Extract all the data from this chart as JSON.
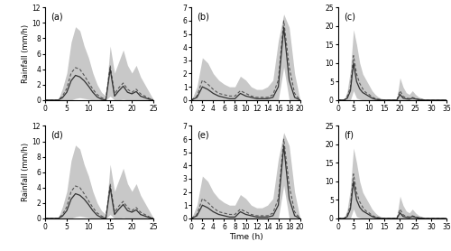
{
  "panels": [
    {
      "label": "(a)",
      "xlim": [
        0,
        25
      ],
      "xticks": [
        0,
        5,
        10,
        15,
        20,
        25
      ],
      "ylim": [
        0,
        12
      ],
      "yticks": [
        0,
        2,
        4,
        6,
        8,
        10,
        12
      ],
      "time": [
        0,
        1,
        2,
        3,
        4,
        5,
        6,
        7,
        8,
        9,
        10,
        11,
        12,
        13,
        14,
        15,
        16,
        17,
        18,
        19,
        20,
        21,
        22,
        23,
        24,
        25
      ],
      "obs": [
        0,
        0,
        0,
        0,
        0.3,
        1.0,
        2.5,
        3.2,
        3.0,
        2.5,
        1.8,
        1.0,
        0.4,
        0.1,
        0,
        4.0,
        0.5,
        1.2,
        1.8,
        1.0,
        0.8,
        1.1,
        0.5,
        0.3,
        0.1,
        0
      ],
      "med": [
        0,
        0,
        0,
        0,
        0.5,
        1.5,
        3.5,
        4.2,
        4.0,
        3.2,
        2.3,
        1.4,
        0.7,
        0.3,
        0.1,
        4.5,
        0.8,
        1.6,
        2.2,
        1.4,
        1.0,
        1.4,
        0.8,
        0.5,
        0.2,
        0
      ],
      "upper": [
        0,
        0,
        0,
        0,
        1.5,
        3.5,
        7.5,
        9.5,
        9.0,
        7.0,
        5.5,
        3.5,
        2.0,
        1.0,
        0.5,
        7.0,
        3.5,
        5.0,
        6.5,
        4.5,
        3.5,
        4.5,
        3.0,
        2.0,
        1.0,
        0
      ],
      "lower": [
        0,
        0,
        0,
        0,
        0,
        0,
        0,
        0.2,
        0.3,
        0.2,
        0.1,
        0,
        0,
        0,
        0,
        0.5,
        0,
        0,
        0.1,
        0,
        0,
        0,
        0,
        0,
        0,
        0
      ]
    },
    {
      "label": "(b)",
      "xlim": [
        0,
        20
      ],
      "xticks": [
        0,
        2,
        4,
        6,
        8,
        10,
        12,
        14,
        16,
        18,
        20
      ],
      "ylim": [
        0,
        7
      ],
      "yticks": [
        0,
        1,
        2,
        3,
        4,
        5,
        6,
        7
      ],
      "time": [
        0,
        1,
        2,
        3,
        4,
        5,
        6,
        7,
        8,
        9,
        10,
        11,
        12,
        13,
        14,
        15,
        16,
        17,
        18,
        19,
        20
      ],
      "obs": [
        0,
        0.2,
        1.0,
        0.8,
        0.5,
        0.3,
        0.2,
        0.1,
        0.1,
        0.5,
        0.3,
        0.2,
        0.1,
        0.1,
        0.1,
        0.2,
        1.0,
        5.5,
        1.5,
        0.2,
        0
      ],
      "med": [
        0,
        0.3,
        1.5,
        1.2,
        0.8,
        0.5,
        0.4,
        0.3,
        0.3,
        0.7,
        0.5,
        0.3,
        0.2,
        0.2,
        0.2,
        0.4,
        1.5,
        6.0,
        2.5,
        0.5,
        0
      ],
      "upper": [
        0,
        1.0,
        3.2,
        2.8,
        2.0,
        1.5,
        1.2,
        1.0,
        1.0,
        1.8,
        1.5,
        1.0,
        0.8,
        0.8,
        1.0,
        1.5,
        4.5,
        6.5,
        5.5,
        2.0,
        0
      ],
      "lower": [
        0,
        0,
        0,
        0,
        0,
        0,
        0,
        0,
        0,
        0,
        0,
        0,
        0,
        0,
        0,
        0,
        0,
        2.5,
        0,
        0,
        0
      ]
    },
    {
      "label": "(c)",
      "xlim": [
        0,
        35
      ],
      "xticks": [
        0,
        5,
        10,
        15,
        20,
        25,
        30,
        35
      ],
      "ylim": [
        0,
        25
      ],
      "yticks": [
        0,
        5,
        10,
        15,
        20,
        25
      ],
      "time": [
        0,
        1,
        2,
        3,
        4,
        5,
        6,
        7,
        8,
        9,
        10,
        11,
        12,
        13,
        14,
        15,
        16,
        17,
        18,
        19,
        20,
        21,
        22,
        23,
        24,
        25,
        26,
        27,
        28,
        29,
        30,
        31,
        32,
        33,
        34,
        35
      ],
      "obs": [
        0,
        0,
        0,
        0.5,
        2.5,
        10.0,
        5.0,
        3.0,
        2.0,
        1.5,
        1.0,
        0.5,
        0.2,
        0.1,
        0,
        0,
        0,
        0,
        0,
        0,
        1.5,
        0.5,
        0.3,
        0.2,
        0.5,
        0.3,
        0.1,
        0.1,
        0,
        0,
        0,
        0,
        0,
        0,
        0,
        0
      ],
      "med": [
        0,
        0,
        0,
        1.0,
        3.5,
        12.0,
        7.0,
        4.5,
        3.0,
        2.0,
        1.5,
        0.8,
        0.4,
        0.2,
        0.1,
        0,
        0,
        0,
        0,
        0,
        2.5,
        1.0,
        0.5,
        0.4,
        0.7,
        0.4,
        0.2,
        0.1,
        0,
        0,
        0,
        0,
        0,
        0,
        0,
        0
      ],
      "upper": [
        0,
        0,
        0,
        2.5,
        8.0,
        19.0,
        15.0,
        10.0,
        7.0,
        5.5,
        4.0,
        2.5,
        1.5,
        0.8,
        0.4,
        0.2,
        0.1,
        0,
        0,
        0.5,
        6.0,
        3.5,
        2.0,
        1.5,
        2.5,
        1.5,
        0.8,
        0.5,
        0.2,
        0.1,
        0,
        0,
        0,
        0,
        0,
        0
      ],
      "lower": [
        0,
        0,
        0,
        0,
        0,
        2.5,
        0.5,
        0.2,
        0,
        0,
        0,
        0,
        0,
        0,
        0,
        0,
        0,
        0,
        0,
        0,
        0,
        0,
        0,
        0,
        0,
        0,
        0,
        0,
        0,
        0,
        0,
        0,
        0,
        0,
        0,
        0
      ]
    },
    {
      "label": "(d)",
      "xlim": [
        0,
        25
      ],
      "xticks": [
        0,
        5,
        10,
        15,
        20,
        25
      ],
      "ylim": [
        0,
        12
      ],
      "yticks": [
        0,
        2,
        4,
        6,
        8,
        10,
        12
      ],
      "time": [
        0,
        1,
        2,
        3,
        4,
        5,
        6,
        7,
        8,
        9,
        10,
        11,
        12,
        13,
        14,
        15,
        16,
        17,
        18,
        19,
        20,
        21,
        22,
        23,
        24,
        25
      ],
      "obs": [
        0,
        0,
        0,
        0,
        0.3,
        1.0,
        2.5,
        3.2,
        3.0,
        2.5,
        1.8,
        1.0,
        0.4,
        0.1,
        0,
        4.0,
        0.5,
        1.2,
        1.8,
        1.0,
        0.8,
        1.1,
        0.5,
        0.3,
        0.1,
        0
      ],
      "med": [
        0,
        0,
        0,
        0,
        0.5,
        1.5,
        3.5,
        4.2,
        4.0,
        3.2,
        2.3,
        1.4,
        0.7,
        0.3,
        0.1,
        4.5,
        0.8,
        1.6,
        2.2,
        1.4,
        1.0,
        1.4,
        0.8,
        0.5,
        0.2,
        0
      ],
      "upper": [
        0,
        0,
        0,
        0,
        1.5,
        3.5,
        7.5,
        9.5,
        9.0,
        7.0,
        5.5,
        3.5,
        2.0,
        1.0,
        0.5,
        7.0,
        3.5,
        5.0,
        6.5,
        4.5,
        3.5,
        4.5,
        3.0,
        2.0,
        1.0,
        0
      ],
      "lower": [
        0,
        0,
        0,
        0,
        0,
        0,
        0,
        0.2,
        0.3,
        0.2,
        0.1,
        0,
        0,
        0,
        0,
        0.5,
        0,
        0,
        0.1,
        0,
        0,
        0,
        0,
        0,
        0,
        0
      ]
    },
    {
      "label": "(e)",
      "xlim": [
        0,
        20
      ],
      "xticks": [
        0,
        2,
        4,
        6,
        8,
        10,
        12,
        14,
        16,
        18,
        20
      ],
      "ylim": [
        0,
        7
      ],
      "yticks": [
        0,
        1,
        2,
        3,
        4,
        5,
        6,
        7
      ],
      "time": [
        0,
        1,
        2,
        3,
        4,
        5,
        6,
        7,
        8,
        9,
        10,
        11,
        12,
        13,
        14,
        15,
        16,
        17,
        18,
        19,
        20
      ],
      "obs": [
        0,
        0.2,
        1.0,
        0.8,
        0.5,
        0.3,
        0.2,
        0.1,
        0.1,
        0.5,
        0.3,
        0.2,
        0.1,
        0.1,
        0.1,
        0.2,
        1.0,
        5.5,
        1.5,
        0.2,
        0
      ],
      "med": [
        0,
        0.3,
        1.5,
        1.2,
        0.8,
        0.5,
        0.4,
        0.3,
        0.3,
        0.7,
        0.5,
        0.3,
        0.2,
        0.2,
        0.2,
        0.4,
        1.5,
        6.0,
        2.5,
        0.5,
        0
      ],
      "upper": [
        0,
        1.0,
        3.2,
        2.8,
        2.0,
        1.5,
        1.2,
        1.0,
        1.0,
        1.8,
        1.5,
        1.0,
        0.8,
        0.8,
        1.0,
        1.5,
        4.5,
        6.5,
        5.5,
        2.0,
        0
      ],
      "lower": [
        0,
        0,
        0,
        0,
        0,
        0,
        0,
        0,
        0,
        0,
        0,
        0,
        0,
        0,
        0,
        0,
        0,
        2.5,
        0,
        0,
        0
      ]
    },
    {
      "label": "(f)",
      "xlim": [
        0,
        35
      ],
      "xticks": [
        0,
        5,
        10,
        15,
        20,
        25,
        30,
        35
      ],
      "ylim": [
        0,
        25
      ],
      "yticks": [
        0,
        5,
        10,
        15,
        20,
        25
      ],
      "time": [
        0,
        1,
        2,
        3,
        4,
        5,
        6,
        7,
        8,
        9,
        10,
        11,
        12,
        13,
        14,
        15,
        16,
        17,
        18,
        19,
        20,
        21,
        22,
        23,
        24,
        25,
        26,
        27,
        28,
        29,
        30,
        31,
        32,
        33,
        34,
        35
      ],
      "obs": [
        0,
        0,
        0,
        0.5,
        2.5,
        10.0,
        5.0,
        3.0,
        2.0,
        1.5,
        1.0,
        0.5,
        0.2,
        0.1,
        0,
        0,
        0,
        0,
        0,
        0,
        1.5,
        0.5,
        0.3,
        0.2,
        0.5,
        0.3,
        0.1,
        0.1,
        0,
        0,
        0,
        0,
        0,
        0,
        0,
        0
      ],
      "med": [
        0,
        0,
        0,
        1.0,
        3.5,
        12.0,
        7.0,
        4.5,
        3.0,
        2.0,
        1.5,
        0.8,
        0.4,
        0.2,
        0.1,
        0,
        0,
        0,
        0,
        0,
        2.5,
        1.0,
        0.5,
        0.4,
        0.7,
        0.4,
        0.2,
        0.1,
        0,
        0,
        0,
        0,
        0,
        0,
        0,
        0
      ],
      "upper": [
        0,
        0,
        0,
        2.5,
        8.0,
        19.0,
        15.0,
        10.0,
        7.0,
        5.5,
        4.0,
        2.5,
        1.5,
        0.8,
        0.4,
        0.2,
        0.1,
        0,
        0,
        0.5,
        6.0,
        3.5,
        2.0,
        1.5,
        2.5,
        1.5,
        0.8,
        0.5,
        0.2,
        0.1,
        0,
        0,
        0,
        0,
        0,
        0
      ],
      "lower": [
        0,
        0,
        0,
        0,
        0,
        2.5,
        0.5,
        0.2,
        0,
        0,
        0,
        0,
        0,
        0,
        0,
        0,
        0,
        0,
        0,
        0,
        0,
        0,
        0,
        0,
        0,
        0,
        0,
        0,
        0,
        0,
        0,
        0,
        0,
        0,
        0,
        0
      ]
    }
  ],
  "ylabel": "Rainfall (mm/h)",
  "xlabel": "Time (h)",
  "shade_color": "#c8c8c8",
  "obs_color": "#333333",
  "med_color": "#555555",
  "bg_color": "#ffffff"
}
